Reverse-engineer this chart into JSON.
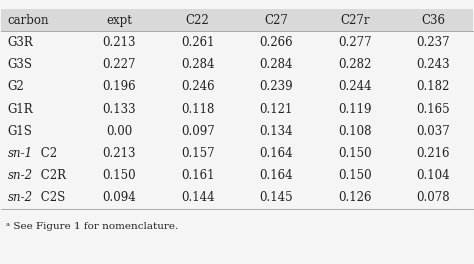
{
  "columns": [
    "carbon",
    "expt",
    "C22",
    "C27",
    "C27r",
    "C36"
  ],
  "rows": [
    [
      "G3R",
      "0.213",
      "0.261",
      "0.266",
      "0.277",
      "0.237"
    ],
    [
      "G3S",
      "0.227",
      "0.284",
      "0.284",
      "0.282",
      "0.243"
    ],
    [
      "G2",
      "0.196",
      "0.246",
      "0.239",
      "0.244",
      "0.182"
    ],
    [
      "G1R",
      "0.133",
      "0.118",
      "0.121",
      "0.119",
      "0.165"
    ],
    [
      "G1S",
      "0.00",
      "0.097",
      "0.134",
      "0.108",
      "0.037"
    ],
    [
      "sn-1 C2",
      "0.213",
      "0.157",
      "0.164",
      "0.150",
      "0.216"
    ],
    [
      "sn-2 C2R",
      "0.150",
      "0.161",
      "0.164",
      "0.150",
      "0.104"
    ],
    [
      "sn-2 C2S",
      "0.094",
      "0.144",
      "0.145",
      "0.126",
      "0.078"
    ]
  ],
  "italic_prefix": [
    "sn-1",
    "sn-2"
  ],
  "footnote": "ᵃ See Figure 1 for nomenclature.",
  "header_bg": "#d9d9d9",
  "bg_color": "#f5f5f5",
  "font_size": 8.5,
  "header_font_size": 8.5,
  "footnote_font_size": 7.5
}
